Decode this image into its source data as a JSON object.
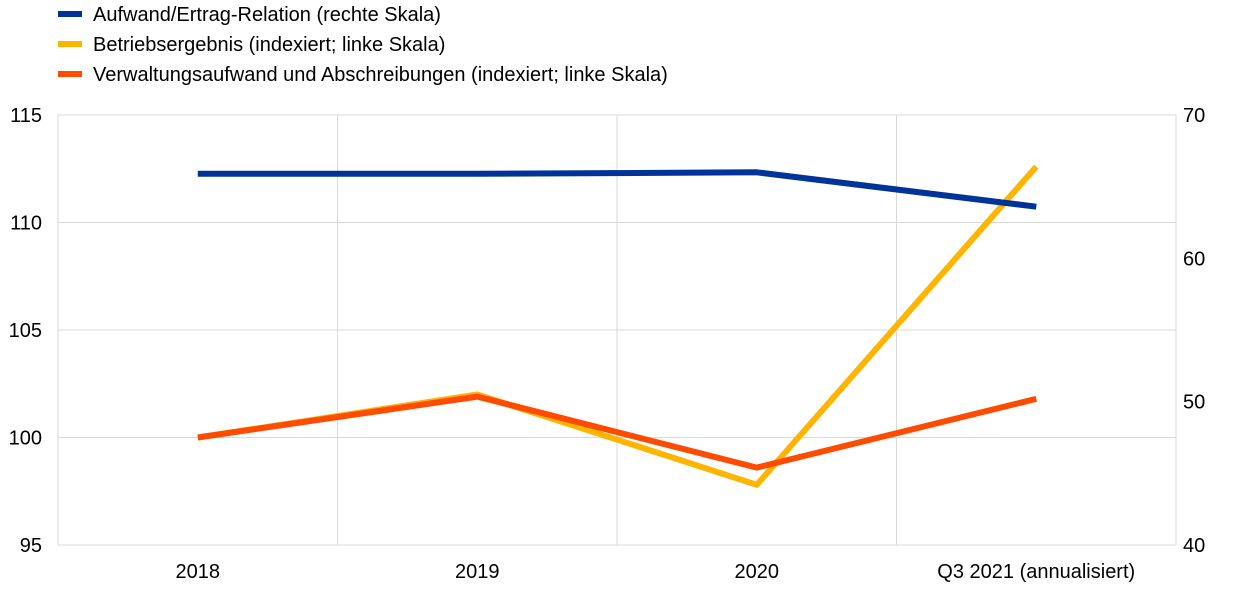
{
  "chart_data": {
    "type": "line",
    "categories": [
      "2018",
      "2019",
      "2020",
      "Q3 2021 (annualisiert)"
    ],
    "left_axis": {
      "ylim": [
        95,
        115
      ],
      "ticks": [
        95,
        100,
        105,
        110,
        115
      ]
    },
    "right_axis": {
      "ylim": [
        40,
        70
      ],
      "ticks": [
        40,
        50,
        60,
        70
      ]
    },
    "grid": true,
    "legend_placement": "top-left",
    "series": [
      {
        "name": "Aufwand/Ertrag-Relation (rechte Skala)",
        "axis": "right",
        "color": "#003399",
        "values": [
          65.9,
          65.9,
          66.0,
          63.6
        ]
      },
      {
        "name": "Betriebsergebnis (indexiert; linke Skala)",
        "axis": "left",
        "color": "#FFB400",
        "values": [
          100.0,
          102.0,
          97.8,
          112.6
        ]
      },
      {
        "name": "Verwaltungsaufwand und Abschreibungen (indexiert; linke Skala)",
        "axis": "left",
        "color": "#FF4B00",
        "values": [
          100.0,
          101.9,
          98.6,
          101.8
        ]
      }
    ]
  }
}
